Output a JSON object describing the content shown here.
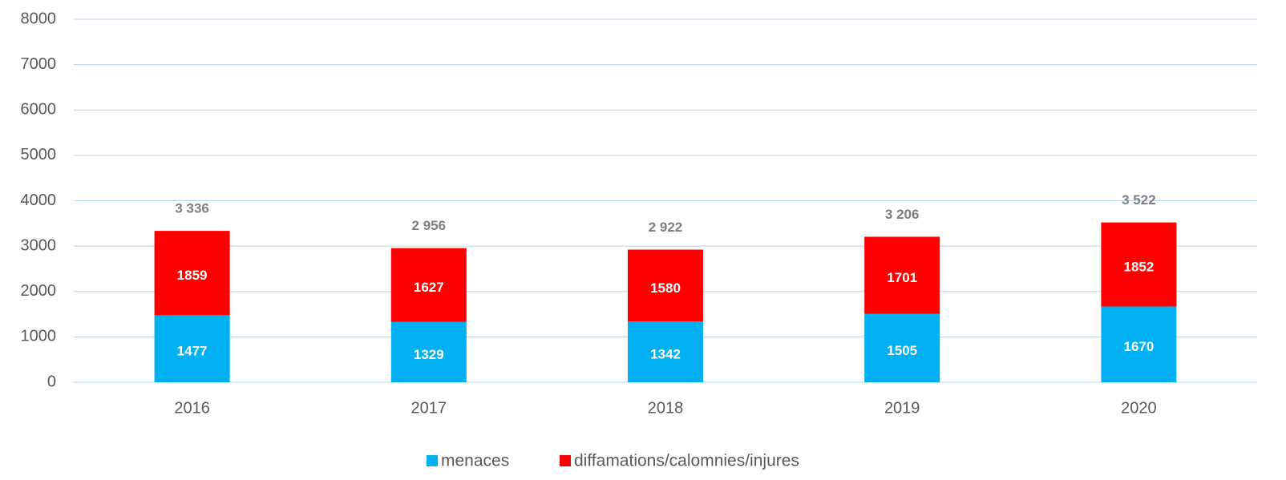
{
  "chart_data": {
    "type": "stacked_bar",
    "categories": [
      "2016",
      "2017",
      "2018",
      "2019",
      "2020"
    ],
    "series": [
      {
        "name": "menaces",
        "color": "#00b0f0",
        "values": [
          1477,
          1329,
          1342,
          1505,
          1670
        ]
      },
      {
        "name": "diffamations/calomnies/injures",
        "color": "#ff0000",
        "values": [
          1859,
          1627,
          1580,
          1701,
          1852
        ]
      }
    ],
    "total_labels": [
      "3 336",
      "2 956",
      "2 922",
      "3 206",
      "3 522"
    ],
    "ylim": [
      0,
      8000
    ],
    "yticks": [
      0,
      1000,
      2000,
      3000,
      4000,
      5000,
      6000,
      7000,
      8000
    ],
    "grid": true,
    "legend": "bottom"
  }
}
